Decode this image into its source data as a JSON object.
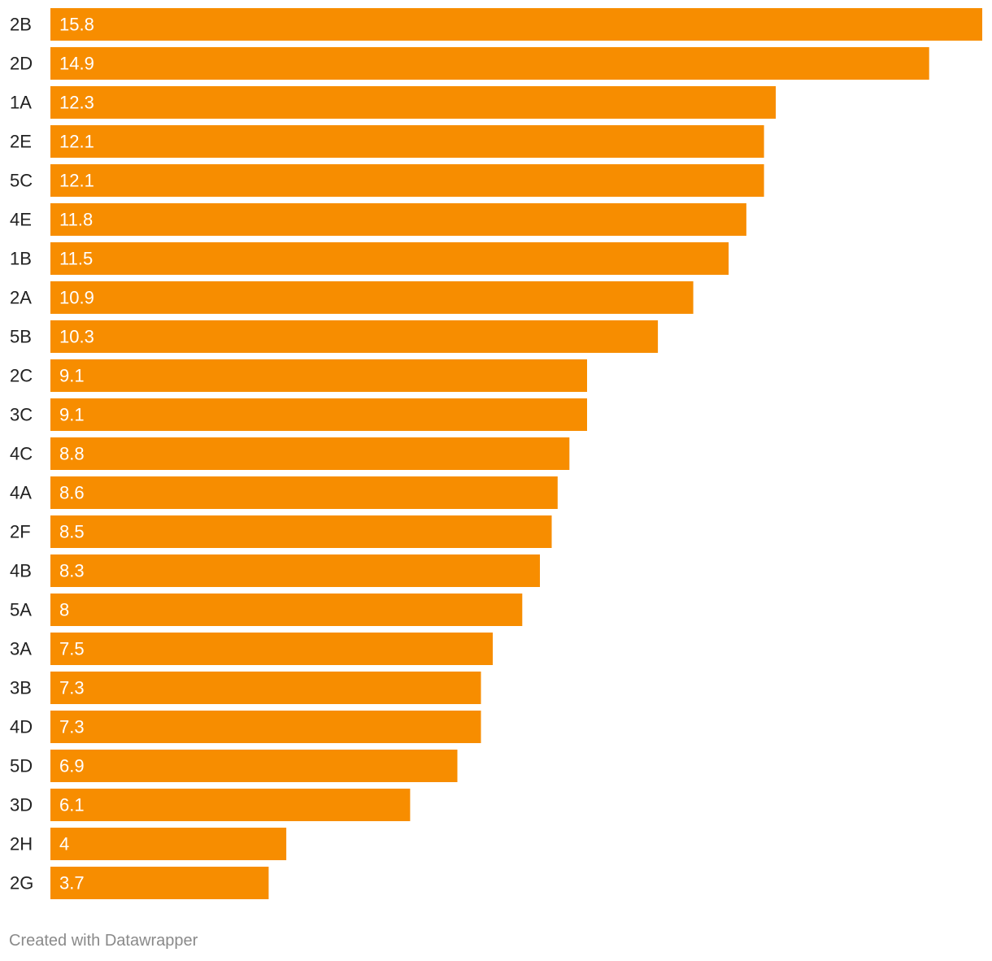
{
  "chart_data": {
    "type": "bar",
    "orientation": "horizontal",
    "title": "",
    "xlabel": "",
    "ylabel": "",
    "xlim": [
      0,
      15.8
    ],
    "grid": false,
    "bar_color": "#f78d00",
    "value_label_color": "#ffffff",
    "categories": [
      "2B",
      "2D",
      "1A",
      "2E",
      "5C",
      "4E",
      "1B",
      "2A",
      "5B",
      "2C",
      "3C",
      "4C",
      "4A",
      "2F",
      "4B",
      "5A",
      "3A",
      "3B",
      "4D",
      "5D",
      "3D",
      "2H",
      "2G"
    ],
    "values": [
      15.8,
      14.9,
      12.3,
      12.1,
      12.1,
      11.8,
      11.5,
      10.9,
      10.3,
      9.1,
      9.1,
      8.8,
      8.6,
      8.5,
      8.3,
      8,
      7.5,
      7.3,
      7.3,
      6.9,
      6.1,
      4,
      3.7
    ],
    "value_labels": [
      "15.8",
      "14.9",
      "12.3",
      "12.1",
      "12.1",
      "11.8",
      "11.5",
      "10.9",
      "10.3",
      "9.1",
      "9.1",
      "8.8",
      "8.6",
      "8.5",
      "8.3",
      "8",
      "7.5",
      "7.3",
      "7.3",
      "6.9",
      "6.1",
      "4",
      "3.7"
    ]
  },
  "footer": {
    "credit": "Created with Datawrapper"
  }
}
